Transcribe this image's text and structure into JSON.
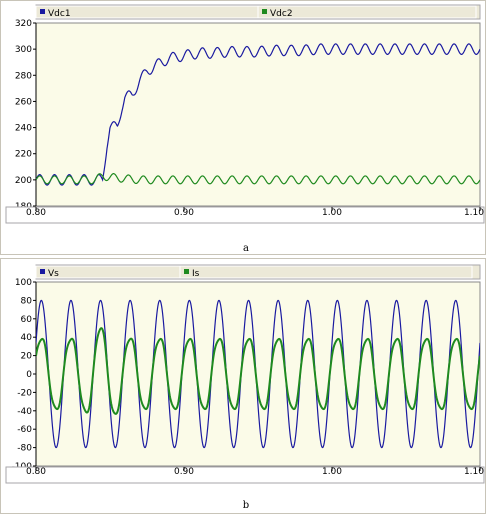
{
  "chart_data": [
    {
      "type": "line",
      "caption": "a",
      "xlim": [
        0.8,
        1.1
      ],
      "ylim": [
        180,
        320
      ],
      "x_ticks": [
        "0.80",
        "0.90",
        "1.00",
        "1.10"
      ],
      "y_ticks": [
        "180",
        "200",
        "220",
        "240",
        "260",
        "280",
        "300",
        "320"
      ],
      "grid": false,
      "legend_position": "top",
      "series": [
        {
          "name": "Vdc1",
          "color": "#1a1aa0",
          "x": [
            0.8,
            0.805,
            0.81,
            0.815,
            0.82,
            0.825,
            0.83,
            0.835,
            0.84,
            0.845,
            0.848,
            0.85,
            0.855,
            0.858,
            0.86,
            0.865,
            0.87,
            0.875,
            0.88,
            0.885,
            0.89,
            0.9,
            0.91,
            0.92,
            0.93,
            0.94,
            0.95,
            0.96,
            0.97,
            0.98,
            0.99,
            1.0,
            1.02,
            1.04,
            1.06,
            1.08,
            1.1
          ],
          "y": [
            200,
            200,
            200,
            200,
            200,
            200,
            200,
            200,
            200,
            200,
            228,
            240,
            241,
            256,
            263,
            265,
            276,
            283,
            287,
            290,
            293,
            295,
            297,
            297,
            298,
            298,
            298,
            299,
            299,
            299,
            300,
            300,
            300,
            300,
            300,
            300,
            300
          ],
          "ripple_amplitude": 4,
          "ripple_period": 0.01
        },
        {
          "name": "Vdc2",
          "color": "#1f8a1f",
          "x": [
            0.8,
            0.84,
            0.845,
            0.85,
            0.87,
            0.9,
            1.0,
            1.1
          ],
          "y": [
            200,
            200,
            203,
            202,
            200,
            200,
            200,
            200
          ],
          "ripple_amplitude": 3,
          "ripple_period": 0.01
        }
      ]
    },
    {
      "type": "line",
      "caption": "b",
      "xlim": [
        0.8,
        1.1
      ],
      "ylim": [
        -100,
        100
      ],
      "x_ticks": [
        "0.80",
        "0.90",
        "1.00",
        "1.10"
      ],
      "y_ticks": [
        "-100",
        "-80",
        "-60",
        "-40",
        "-20",
        "0",
        "20",
        "40",
        "60",
        "80",
        "100"
      ],
      "grid": false,
      "legend_position": "top",
      "series": [
        {
          "name": "Vs",
          "color": "#1a1aa0",
          "amplitude": 80,
          "frequency_hz": 50,
          "phase_deg": 25
        },
        {
          "name": "Is",
          "color": "#1f8a1f",
          "amplitude": 40,
          "frequency_hz": 50,
          "phase_deg": 25,
          "harmonic_amplitude": 3,
          "peak_at_x": 0.845,
          "peak_value": 52
        }
      ]
    }
  ]
}
